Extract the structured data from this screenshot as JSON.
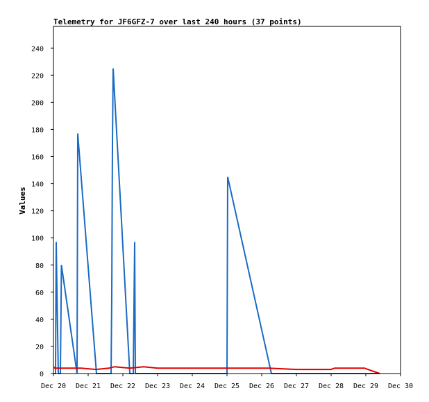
{
  "chart_data": {
    "type": "line",
    "title": "Telemetry for JF6GFZ-7 over last 240 hours (37 points)",
    "xlabel": "",
    "ylabel": "Values",
    "xlim": [
      0,
      10
    ],
    "ylim": [
      0,
      256
    ],
    "y_ticks": [
      0,
      20,
      40,
      60,
      80,
      100,
      120,
      140,
      160,
      180,
      200,
      220,
      240
    ],
    "x_ticks": [
      {
        "x": 0,
        "label": "Dec 20"
      },
      {
        "x": 1,
        "label": "Dec 21"
      },
      {
        "x": 2,
        "label": "Dec 22"
      },
      {
        "x": 3,
        "label": "Dec 23"
      },
      {
        "x": 4,
        "label": "Dec 24"
      },
      {
        "x": 5,
        "label": "Dec 25"
      },
      {
        "x": 6,
        "label": "Dec 26"
      },
      {
        "x": 7,
        "label": "Dec 27"
      },
      {
        "x": 8,
        "label": "Dec 28"
      },
      {
        "x": 9,
        "label": "Dec 29"
      },
      {
        "x": 10,
        "label": "Dec 30"
      }
    ],
    "grid": false,
    "series": [
      {
        "color": "#1a6bc4",
        "points": [
          [
            0.0,
            0
          ],
          [
            0.06,
            0
          ],
          [
            0.08,
            97
          ],
          [
            0.1,
            62
          ],
          [
            0.14,
            0
          ],
          [
            0.2,
            0
          ],
          [
            0.23,
            80
          ],
          [
            0.68,
            0
          ],
          [
            0.7,
            177
          ],
          [
            1.24,
            0
          ],
          [
            1.66,
            0
          ],
          [
            1.68,
            57
          ],
          [
            1.7,
            170
          ],
          [
            1.72,
            225
          ],
          [
            2.2,
            0
          ],
          [
            2.3,
            0
          ],
          [
            2.34,
            97
          ],
          [
            2.36,
            0
          ],
          [
            5.0,
            0
          ],
          [
            5.02,
            145
          ],
          [
            6.28,
            0
          ],
          [
            9.4,
            0
          ]
        ]
      },
      {
        "color": "#e00000",
        "points": [
          [
            0.0,
            5
          ],
          [
            0.04,
            4
          ],
          [
            0.5,
            4
          ],
          [
            0.66,
            4
          ],
          [
            0.8,
            4
          ],
          [
            1.22,
            3
          ],
          [
            1.6,
            4
          ],
          [
            1.76,
            5
          ],
          [
            2.2,
            4
          ],
          [
            2.6,
            5
          ],
          [
            3.0,
            4
          ],
          [
            5.0,
            4
          ],
          [
            6.2,
            4
          ],
          [
            7.0,
            3
          ],
          [
            8.0,
            3
          ],
          [
            8.1,
            4
          ],
          [
            8.96,
            4
          ],
          [
            9.06,
            3
          ],
          [
            9.4,
            0
          ]
        ]
      }
    ]
  }
}
